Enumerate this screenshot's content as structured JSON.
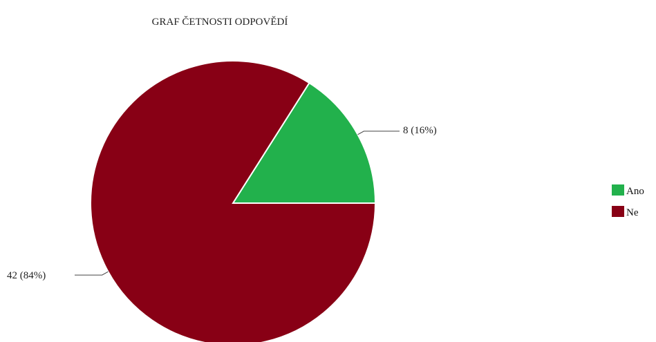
{
  "chart_data": {
    "type": "pie",
    "title": "GRAF ČETNOSTI ODPOVĚDÍ",
    "categories": [
      "Ano",
      "Ne"
    ],
    "values": [
      8,
      42
    ],
    "percentages": [
      16,
      84
    ],
    "data_labels": [
      "8 (16%)",
      "42 (84%)"
    ],
    "colors": [
      "#22b14c",
      "#880015"
    ],
    "start_angle_deg": 0,
    "direction": "counterclockwise",
    "legend": {
      "position": "right",
      "items": [
        {
          "label": "Ano",
          "color": "#22b14c"
        },
        {
          "label": "Ne",
          "color": "#880015"
        }
      ]
    }
  }
}
